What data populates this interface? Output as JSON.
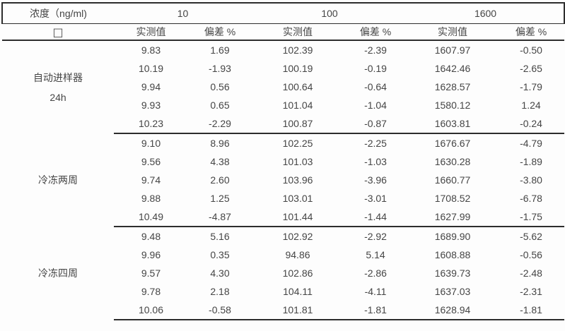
{
  "table": {
    "header": {
      "col_group_label": "浓度（ng/ml)",
      "row_label_placeholder": "□",
      "measured_label": "实测值",
      "deviation_label": "偏差 %",
      "groups": [
        {
          "concentration": "10"
        },
        {
          "concentration": "100"
        },
        {
          "concentration": "1600"
        }
      ]
    },
    "sections": [
      {
        "label_line1": "自动进样器",
        "label_line2": "24h",
        "rows": [
          [
            "9.83",
            "1.69",
            "102.39",
            "-2.39",
            "1607.97",
            "-0.50"
          ],
          [
            "10.19",
            "-1.93",
            "100.19",
            "-0.19",
            "1642.46",
            "-2.65"
          ],
          [
            "9.94",
            "0.56",
            "100.64",
            "-0.64",
            "1628.57",
            "-1.79"
          ],
          [
            "9.93",
            "0.65",
            "101.04",
            "-1.04",
            "1580.12",
            "1.24"
          ],
          [
            "10.23",
            "-2.29",
            "100.87",
            "-0.87",
            "1603.81",
            "-0.24"
          ]
        ]
      },
      {
        "label_line1": "冷冻两周",
        "rows": [
          [
            "9.10",
            "8.96",
            "102.25",
            "-2.25",
            "1676.67",
            "-4.79"
          ],
          [
            "9.56",
            "4.38",
            "101.03",
            "-1.03",
            "1630.28",
            "-1.89"
          ],
          [
            "9.74",
            "2.60",
            "103.96",
            "-3.96",
            "1660.77",
            "-3.80"
          ],
          [
            "9.88",
            "1.25",
            "103.01",
            "-3.01",
            "1708.52",
            "-6.78"
          ],
          [
            "10.49",
            "-4.87",
            "101.44",
            "-1.44",
            "1627.99",
            "-1.75"
          ]
        ]
      },
      {
        "label_line1": "冷冻四周",
        "rows": [
          [
            "9.48",
            "5.16",
            "102.92",
            "-2.92",
            "1689.90",
            "-5.62"
          ],
          [
            "9.96",
            "0.35",
            "94.86",
            "5.14",
            "1608.88",
            "-0.56"
          ],
          [
            "9.57",
            "4.30",
            "102.86",
            "-2.86",
            "1639.73",
            "-2.48"
          ],
          [
            "9.78",
            "2.18",
            "104.11",
            "-4.11",
            "1637.03",
            "-2.31"
          ],
          [
            "10.06",
            "-0.58",
            "101.81",
            "-1.81",
            "1628.94",
            "-1.81"
          ]
        ]
      }
    ]
  },
  "colors": {
    "line": "#2d2d2d",
    "text": "#454545",
    "background": "#fdfdfd"
  }
}
